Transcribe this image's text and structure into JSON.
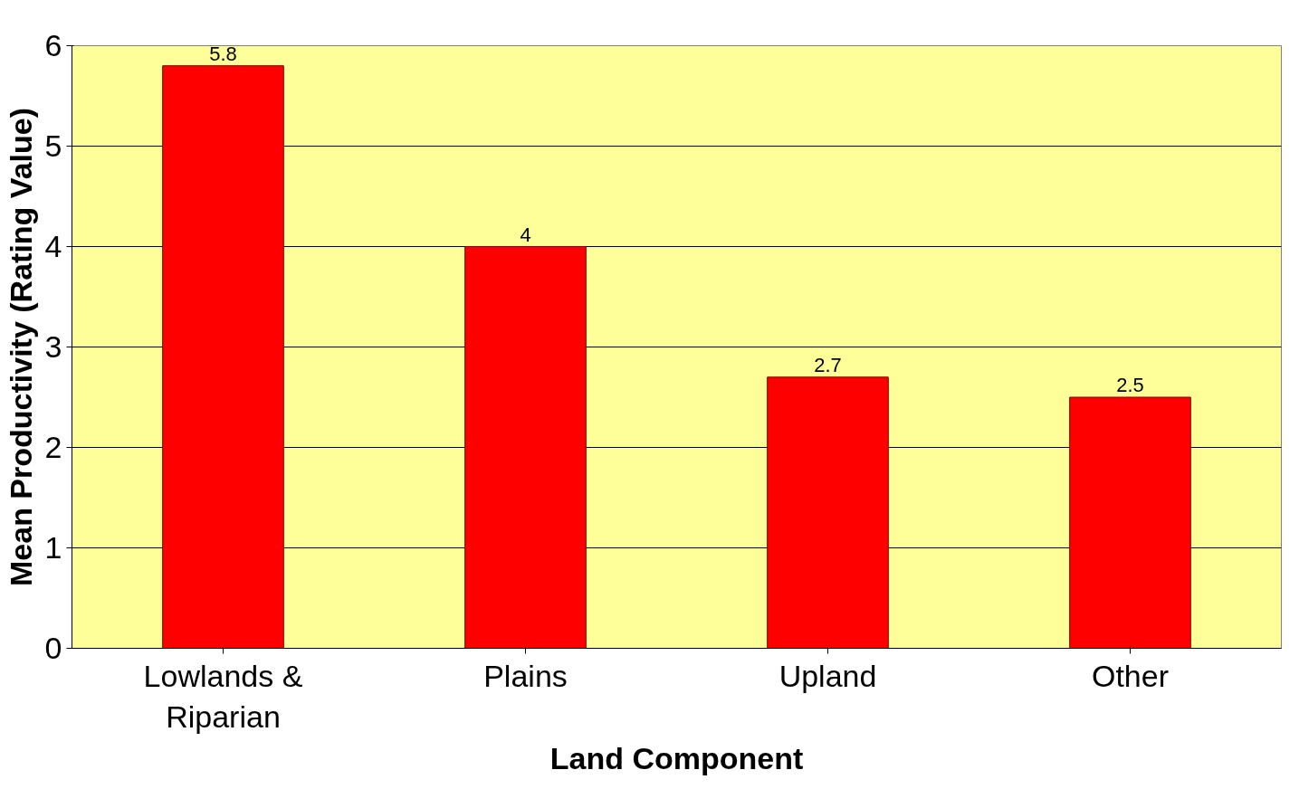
{
  "chart_data": {
    "type": "bar",
    "xlabel": "Land Component",
    "ylabel": "Mean Productivity (Rating Value)",
    "categories": [
      "Lowlands & Riparian",
      "Plains",
      "Upland",
      "Other"
    ],
    "values": [
      5.8,
      4,
      2.7,
      2.5
    ],
    "color": "#ff0000",
    "data_labels": true,
    "ylim": [
      0,
      6
    ],
    "yticks": [
      0,
      1,
      2,
      3,
      4,
      5,
      6
    ],
    "grid": "y"
  }
}
